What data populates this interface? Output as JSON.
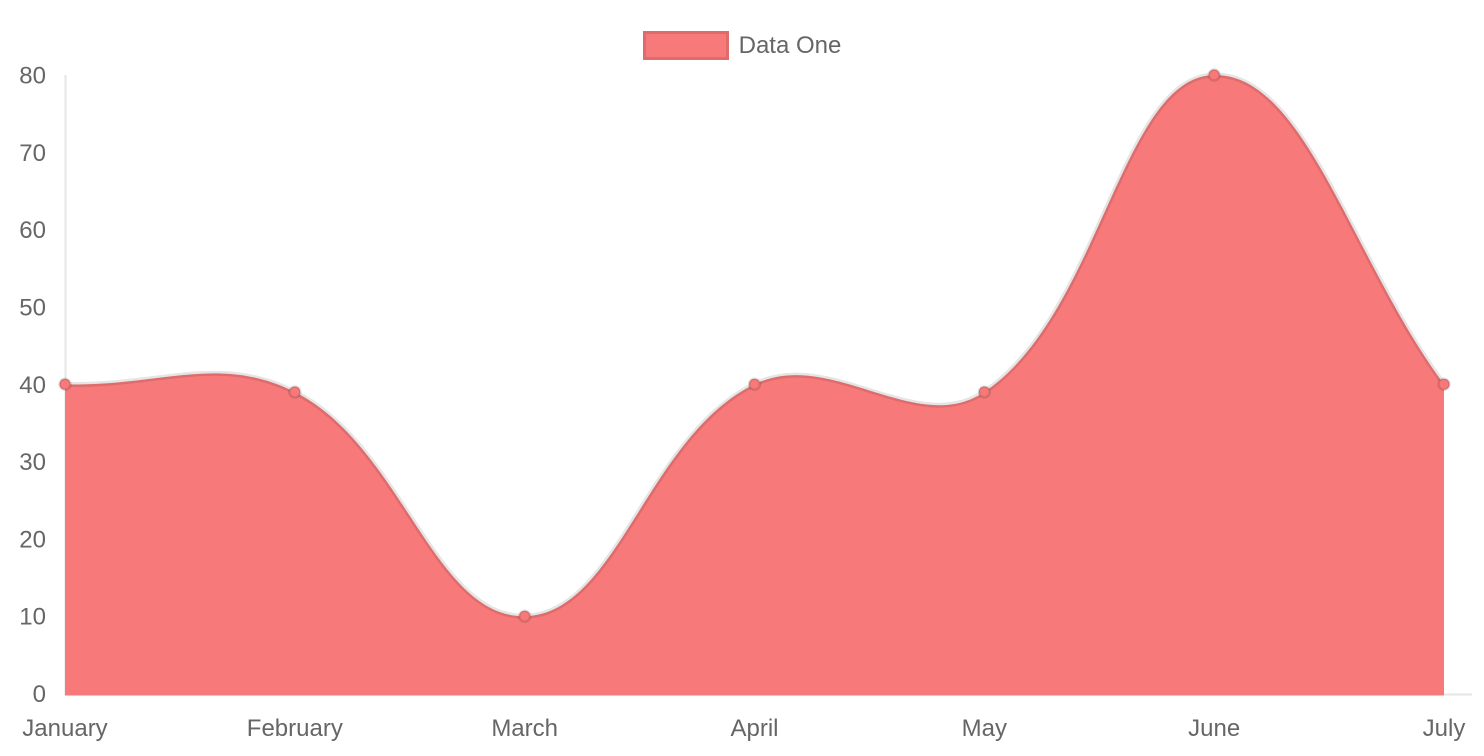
{
  "chart_data": {
    "type": "area",
    "title": "",
    "xlabel": "",
    "ylabel": "",
    "categories": [
      "January",
      "February",
      "March",
      "April",
      "May",
      "June",
      "July"
    ],
    "series": [
      {
        "name": "Data One",
        "values": [
          40,
          39,
          10,
          40,
          39,
          80,
          40
        ]
      }
    ],
    "ylim": [
      0,
      80
    ],
    "y_ticks": [
      0,
      10,
      20,
      30,
      40,
      50,
      60,
      70,
      80
    ],
    "grid": false,
    "legend_position": "top",
    "line_tension": 0.4,
    "colors": {
      "area_fill": "#f87979",
      "line_stroke": "rgba(0,0,0,0.10)",
      "point_fill": "#f87979",
      "point_border": "rgba(0,0,0,0.12)",
      "axis_line": "#e6e6e6",
      "tick_label": "#666666",
      "legend_label": "#666666",
      "background": "#ffffff"
    }
  }
}
